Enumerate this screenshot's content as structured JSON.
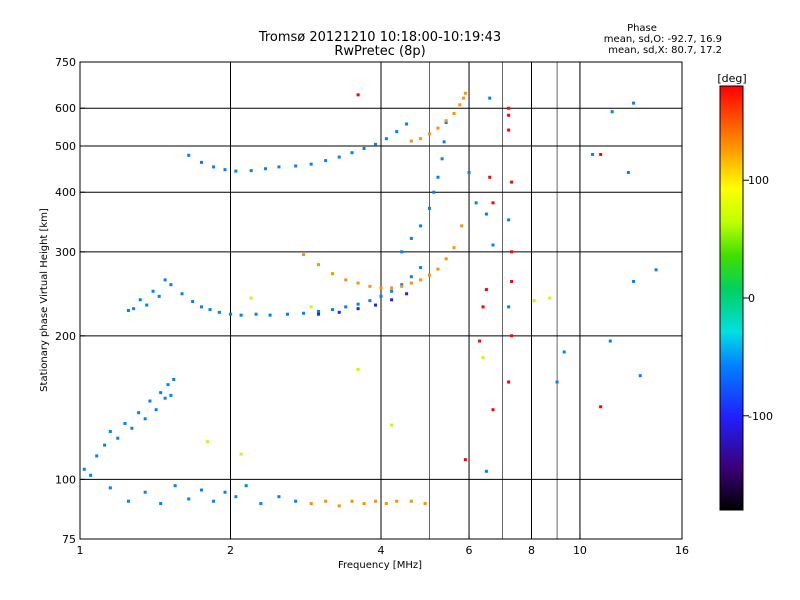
{
  "header": {
    "title_line1": "Tromsø 20121210 10:18:00-10:19:43",
    "title_line2": "RwPretec (8p)"
  },
  "phase_box": {
    "heading": "Phase",
    "line_o": "mean, sd,O: -92.7, 16.9",
    "line_x": "mean, sd,X: 80.7, 17.2"
  },
  "chart_data": {
    "type": "scatter",
    "xlabel": "Frequency [MHz]",
    "ylabel": "Stationary phase Virtual Height [km]",
    "x_scale": "log",
    "y_scale": "log",
    "xlim": [
      1,
      16
    ],
    "ylim": [
      75,
      750
    ],
    "x_ticks": [
      1,
      2,
      4,
      6,
      8,
      10,
      16
    ],
    "x_tick_labels": [
      "1",
      "2",
      "4",
      "6",
      "8",
      "10",
      "16"
    ],
    "x_gridlines": [
      2,
      4,
      6,
      8,
      10
    ],
    "x_minor_lines": [
      5,
      7,
      9
    ],
    "y_ticks": [
      75,
      100,
      200,
      300,
      400,
      500,
      600,
      750
    ],
    "y_tick_labels": [
      "75",
      "100",
      "200",
      "300",
      "400",
      "500",
      "600",
      "750"
    ],
    "y_gridlines": [
      100,
      200,
      300,
      400,
      500,
      600
    ],
    "grid": true,
    "colorbar": {
      "label": "[deg]",
      "range": [
        -180,
        180
      ],
      "ticks": [
        100,
        0,
        -100
      ],
      "tick_labels": [
        "100",
        "0",
        "-100"
      ]
    },
    "series": [
      {
        "color_phase": -95,
        "x": [
          1.02,
          1.05,
          1.08,
          1.12,
          1.15,
          1.19,
          1.23,
          1.27,
          1.31,
          1.35,
          1.38,
          1.42,
          1.45,
          1.48,
          1.5,
          1.52,
          1.54
        ],
        "y": [
          105,
          102,
          112,
          118,
          126,
          122,
          131,
          128,
          138,
          134,
          146,
          140,
          152,
          148,
          158,
          150,
          162
        ]
      },
      {
        "color_phase": -95,
        "x": [
          1.25,
          1.28,
          1.32,
          1.36,
          1.4,
          1.44,
          1.48,
          1.52
        ],
        "y": [
          226,
          228,
          238,
          232,
          248,
          242,
          262,
          256
        ]
      },
      {
        "color_phase": -95,
        "x": [
          1.6,
          1.68,
          1.75,
          1.82,
          1.9,
          2.0,
          2.1,
          2.25,
          2.4,
          2.6,
          2.8,
          3.0,
          3.2,
          3.4,
          3.6,
          3.8,
          4.0,
          4.2,
          4.4,
          4.6,
          4.8
        ],
        "y": [
          245,
          236,
          230,
          227,
          224,
          222,
          221,
          222,
          221,
          222,
          223,
          225,
          227,
          230,
          233,
          237,
          242,
          248,
          256,
          266,
          278
        ]
      },
      {
        "color_phase": -95,
        "x": [
          1.65,
          1.75,
          1.85,
          1.95,
          2.05,
          2.2,
          2.35,
          2.5,
          2.7,
          2.9,
          3.1,
          3.3,
          3.5,
          3.7,
          3.9,
          4.1,
          4.3,
          4.5
        ],
        "y": [
          478,
          462,
          452,
          446,
          443,
          444,
          448,
          452,
          454,
          458,
          466,
          474,
          484,
          494,
          504,
          518,
          536,
          556
        ]
      },
      {
        "color_phase": -95,
        "x": [
          4.4,
          4.6,
          4.8,
          5.0,
          5.1,
          5.2,
          5.3,
          5.35,
          5.4
        ],
        "y": [
          300,
          320,
          340,
          370,
          400,
          430,
          470,
          510,
          560
        ]
      },
      {
        "color_phase": 105,
        "x": [
          2.8,
          3.0,
          3.2,
          3.4,
          3.6,
          3.8,
          4.0,
          4.2,
          4.4,
          4.6,
          4.8,
          5.0,
          5.2,
          5.4,
          5.6,
          5.8
        ],
        "y": [
          296,
          282,
          270,
          262,
          258,
          254,
          252,
          252,
          254,
          258,
          262,
          268,
          276,
          290,
          306,
          340
        ]
      },
      {
        "color_phase": 105,
        "x": [
          4.6,
          4.8,
          5.0,
          5.2,
          5.4,
          5.6,
          5.75,
          5.85,
          5.9
        ],
        "y": [
          512,
          518,
          530,
          545,
          565,
          585,
          610,
          630,
          645
        ]
      },
      {
        "color_phase": -115,
        "x": [
          3.0,
          3.3,
          3.6,
          3.9,
          4.2,
          4.5
        ],
        "y": [
          222,
          224,
          228,
          232,
          238,
          245
        ]
      },
      {
        "color_phase": -95,
        "x": [
          1.15,
          1.25,
          1.35,
          1.45,
          1.55,
          1.65,
          1.75,
          1.85,
          1.95,
          2.05,
          2.15,
          2.3,
          2.5,
          2.7
        ],
        "y": [
          96,
          90,
          94,
          89,
          97,
          91,
          95,
          90,
          94,
          92,
          97,
          89,
          92,
          90
        ]
      },
      {
        "color_phase": 95,
        "x": [
          2.9,
          3.1,
          3.3,
          3.5,
          3.7,
          3.9,
          4.1,
          4.3,
          4.6,
          4.9
        ],
        "y": [
          89,
          90,
          88,
          90,
          89,
          90,
          89,
          90,
          90,
          89
        ]
      },
      {
        "color_phase": 140,
        "x": [
          3.6,
          6.6,
          6.7,
          7.2,
          7.2,
          7.3,
          7.3,
          7.3,
          6.5,
          7.2,
          6.4,
          6.7,
          6.3,
          5.9,
          11.0,
          7.2,
          7.3,
          11.0
        ],
        "y": [
          640,
          430,
          380,
          580,
          540,
          420,
          300,
          200,
          250,
          160,
          230,
          140,
          195,
          110,
          480,
          600,
          260,
          142
        ]
      },
      {
        "color_phase": -85,
        "x": [
          6.0,
          6.2,
          6.5,
          6.7,
          7.2,
          7.2,
          6.5,
          9.3,
          11.5,
          12.5,
          12.8,
          9.0,
          11.6,
          12.8,
          10.6,
          13.2,
          14.2,
          6.6
        ],
        "y": [
          440,
          380,
          360,
          310,
          350,
          230,
          104,
          185,
          195,
          440,
          260,
          160,
          590,
          615,
          480,
          165,
          275,
          630
        ]
      },
      {
        "color_phase": 40,
        "x": [
          8.1,
          8.7,
          2.2,
          2.9,
          3.6,
          4.2,
          1.8,
          2.1,
          6.4
        ],
        "y": [
          237,
          240,
          240,
          230,
          170,
          130,
          120,
          113,
          180
        ]
      }
    ]
  }
}
